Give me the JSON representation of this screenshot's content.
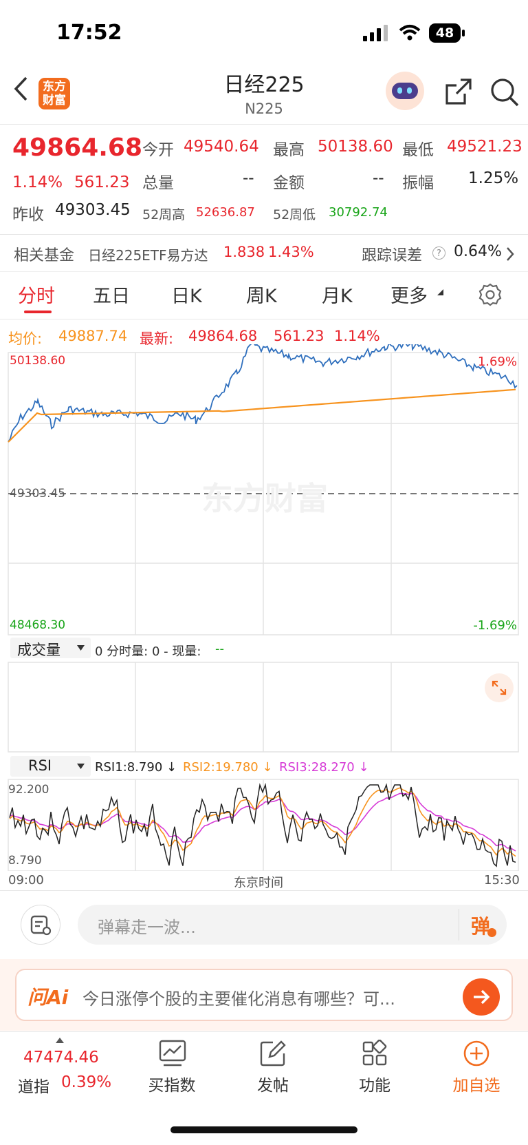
{
  "status": {
    "time": "17:52",
    "battery": "48"
  },
  "header": {
    "title": "日经225",
    "subtitle": "N225",
    "logo_text": "东方财富"
  },
  "quote": {
    "price": "49864.68",
    "change_pct": "1.14%",
    "change": "561.23",
    "open_label": "今开",
    "open": "49540.64",
    "high_label": "最高",
    "high": "50138.60",
    "low_label": "最低",
    "low": "49521.23",
    "volume_label": "总量",
    "volume": "--",
    "amount_label": "金额",
    "amount": "--",
    "amplitude_label": "振幅",
    "amplitude": "1.25%",
    "prev_close_label": "昨收",
    "prev_close": "49303.45",
    "wk52_high_label": "52周高",
    "wk52_high": "52636.87",
    "wk52_low_label": "52周低",
    "wk52_low": "30792.74"
  },
  "fund": {
    "label": "相关基金",
    "name": "日经225ETF易方达",
    "price": "1.838",
    "pct": "1.43%",
    "tracking_label": "跟踪误差",
    "tracking": "0.64%"
  },
  "tabs": [
    "分时",
    "五日",
    "日K",
    "周K",
    "月K",
    "更多"
  ],
  "chart": {
    "avg_label": "均价:",
    "avg": "49887.74",
    "latest_label": "最新:",
    "latest": "49864.68",
    "latest_change": "561.23",
    "latest_pct": "1.14%",
    "y_top": "50138.60",
    "y_mid": "49303.45",
    "y_bottom": "48468.30",
    "pct_top": "1.69%",
    "pct_bottom": "-1.69%",
    "watermark": "东方财富",
    "volume_selector": "成交量",
    "volume_info_a": "0 分时量: 0 - 现量:",
    "volume_info_b": "--",
    "rsi_selector": "RSI",
    "rsi1": "RSI1:8.790 ↓",
    "rsi2": "RSI2:19.780 ↓",
    "rsi3": "RSI3:28.270 ↓",
    "rsi_top": "92.200",
    "rsi_bottom": "8.790",
    "x_start": "09:00",
    "x_mid": "东京时间",
    "x_end": "15:30"
  },
  "comment": {
    "placeholder": "弹幕走一波...",
    "danmu": "弹"
  },
  "ai": {
    "logo": "问Ai",
    "prompt": "今日涨停个股的主要催化消息有哪些？可..."
  },
  "bottom": {
    "index_value": "47474.46",
    "index_name": "道指",
    "index_pct": "0.39%",
    "buy_index": "买指数",
    "post": "发帖",
    "functions": "功能",
    "add_watch": "加自选"
  },
  "colors": {
    "accent": "#e8262d",
    "orange": "#f7931e",
    "blue": "#2b6cb0",
    "magenta": "#d63ad6"
  }
}
